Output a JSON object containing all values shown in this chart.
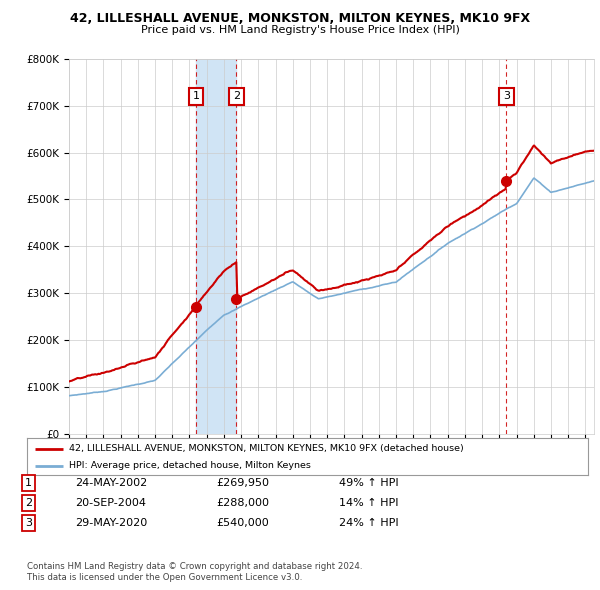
{
  "title": "42, LILLESHALL AVENUE, MONKSTON, MILTON KEYNES, MK10 9FX",
  "subtitle": "Price paid vs. HM Land Registry's House Price Index (HPI)",
  "xlim": [
    1995.0,
    2025.5
  ],
  "ylim": [
    0,
    800000
  ],
  "yticks": [
    0,
    100000,
    200000,
    300000,
    400000,
    500000,
    600000,
    700000,
    800000
  ],
  "transactions": [
    {
      "label": "1",
      "date_num": 2002.38,
      "price": 269950,
      "pct": "49%",
      "date_str": "24-MAY-2002"
    },
    {
      "label": "2",
      "date_num": 2004.72,
      "price": 288000,
      "pct": "14%",
      "date_str": "20-SEP-2004"
    },
    {
      "label": "3",
      "date_num": 2020.41,
      "price": 540000,
      "pct": "24%",
      "date_str": "29-MAY-2020"
    }
  ],
  "legend_red": "42, LILLESHALL AVENUE, MONKSTON, MILTON KEYNES, MK10 9FX (detached house)",
  "legend_blue": "HPI: Average price, detached house, Milton Keynes",
  "footer1": "Contains HM Land Registry data © Crown copyright and database right 2024.",
  "footer2": "This data is licensed under the Open Government Licence v3.0.",
  "red_color": "#cc0000",
  "blue_color": "#7aadd4",
  "shade_color": "#d0e4f5",
  "background_color": "#ffffff",
  "grid_color": "#cccccc"
}
